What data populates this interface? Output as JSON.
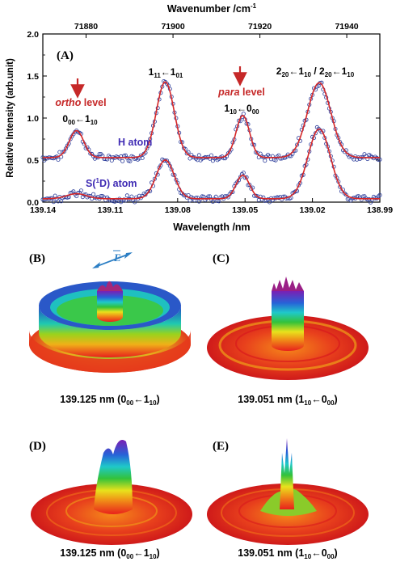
{
  "panel_labels": {
    "a": "(A)",
    "b": "(B)",
    "c": "(C)",
    "d": "(D)",
    "e": "(E)"
  },
  "polarization_label": "E",
  "chart_data": {
    "type": "line",
    "xlabel": "Wavelength /nm",
    "ylabel": "Relative Intensity (arb.unit)",
    "top_axis_label": "Wavenumber /cm",
    "top_axis_label_sup": "-1",
    "xlim": [
      139.14,
      138.99
    ],
    "ylim": [
      0,
      2.0
    ],
    "x_ticks": [
      "139.14",
      "139.11",
      "139.08",
      "139.05",
      "139.02",
      "138.99"
    ],
    "y_ticks": [
      "0.0",
      "0.5",
      "1.0",
      "1.5",
      "2.0"
    ],
    "top_ticks": [
      "71880",
      "71900",
      "71920",
      "71940"
    ],
    "top_tick_values": [
      71880,
      71900,
      71920,
      71940
    ],
    "series": [
      {
        "name": "H atom",
        "baseline": 0.53,
        "fit_color": "#d62728",
        "data_color": "#2a3b9a",
        "peaks": [
          {
            "center": 139.125,
            "height": 0.32,
            "width": 0.0032
          },
          {
            "center": 139.0855,
            "height": 0.9,
            "width": 0.004
          },
          {
            "center": 139.051,
            "height": 0.5,
            "width": 0.003
          },
          {
            "center": 139.017,
            "height": 0.89,
            "width": 0.0052
          }
        ]
      },
      {
        "name": "S(1D) atom",
        "baseline": 0.04,
        "fit_color": "#d62728",
        "data_color": "#2a3b9a",
        "peaks": [
          {
            "center": 139.125,
            "height": 0.06,
            "width": 0.0045
          },
          {
            "center": 139.0855,
            "height": 0.46,
            "width": 0.004
          },
          {
            "center": 139.051,
            "height": 0.28,
            "width": 0.003
          },
          {
            "center": 139.017,
            "height": 0.83,
            "width": 0.005
          }
        ]
      }
    ],
    "annotations": {
      "h_atom_label": "H atom",
      "s_atom_label": "S(",
      "s_atom_sup": "1",
      "s_atom_tail": "D) atom",
      "ortho_level": "ortho",
      "para_level": "para",
      "level_word": " level",
      "peak1_a": "0",
      "peak1_a_sub": "00",
      "peak1_arrow": "←",
      "peak1_b": "1",
      "peak1_b_sub": "10",
      "peak2_a": "1",
      "peak2_a_sub": "11",
      "peak2_arrow": "←",
      "peak2_b": "1",
      "peak2_b_sub": "01",
      "peak3_a": "1",
      "peak3_a_sub": "10",
      "peak3_arrow": "←",
      "peak3_b": "0",
      "peak3_b_sub": "00",
      "peak4_a": "2",
      "peak4_a_sub": "20",
      "peak4_arrow": "←",
      "peak4_b": "1",
      "peak4_b_sub": "10",
      "peak4_sep": " / ",
      "peak4_c": "2",
      "peak4_c_sub": "20",
      "peak4_arrow2": "←",
      "peak4_d": "1",
      "peak4_d_sub": "10"
    }
  },
  "captions": {
    "b": {
      "wl": "139.125 nm (0",
      "s1": "00",
      "arrow": "←1",
      "s2": "10",
      "end": ")"
    },
    "c": {
      "wl": "139.051 nm (1",
      "s1": "10",
      "arrow": "←0",
      "s2": "00",
      "end": ")"
    },
    "d": {
      "wl": "139.125 nm (0",
      "s1": "00",
      "arrow": "←1",
      "s2": "10",
      "end": ")"
    },
    "e": {
      "wl": "139.051 nm (1",
      "s1": "10",
      "arrow": "←0",
      "s2": "00",
      "end": ")"
    }
  },
  "colors": {
    "fit": "#d62728",
    "data": "#2a3b9a",
    "atom_label": "#3f2bb4",
    "arrow": "#c62828",
    "e_vector": "#2b7ec4"
  }
}
